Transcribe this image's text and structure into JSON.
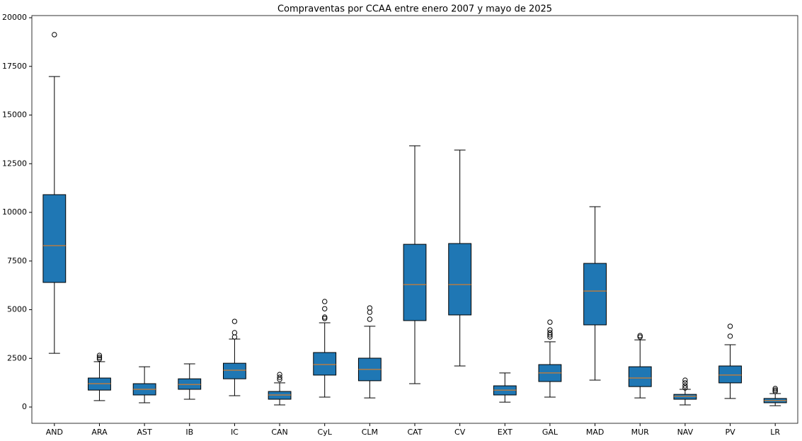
{
  "chart_data": {
    "type": "box",
    "title": "Compraventas por CCAA entre enero 2007 y mayo de 2025",
    "categories": [
      "AND",
      "ARA",
      "AST",
      "IB",
      "IC",
      "CAN",
      "CyL",
      "CLM",
      "CAT",
      "CV",
      "EXT",
      "GAL",
      "MAD",
      "MUR",
      "NAV",
      "PV",
      "LR"
    ],
    "boxes": [
      {
        "whislo": 2760,
        "q1": 6400,
        "med": 8290,
        "q3": 10910,
        "whishi": 16980,
        "fliers": [
          19130
        ]
      },
      {
        "whislo": 330,
        "q1": 870,
        "med": 1200,
        "q3": 1490,
        "whishi": 2330,
        "fliers": [
          2470,
          2550,
          2650
        ]
      },
      {
        "whislo": 220,
        "q1": 620,
        "med": 910,
        "q3": 1200,
        "whishi": 2070,
        "fliers": []
      },
      {
        "whislo": 400,
        "q1": 910,
        "med": 1160,
        "q3": 1450,
        "whishi": 2220,
        "fliers": []
      },
      {
        "whislo": 580,
        "q1": 1450,
        "med": 1890,
        "q3": 2250,
        "whishi": 3490,
        "fliers": [
          3600,
          3820,
          4400
        ]
      },
      {
        "whislo": 110,
        "q1": 400,
        "med": 620,
        "q3": 800,
        "whishi": 1240,
        "fliers": [
          1420,
          1530,
          1670
        ]
      },
      {
        "whislo": 510,
        "q1": 1640,
        "med": 2180,
        "q3": 2800,
        "whishi": 4330,
        "fliers": [
          4550,
          4620,
          5050,
          5420
        ]
      },
      {
        "whislo": 470,
        "q1": 1350,
        "med": 1930,
        "q3": 2510,
        "whishi": 4150,
        "fliers": [
          4510,
          4870,
          5090
        ]
      },
      {
        "whislo": 1200,
        "q1": 4440,
        "med": 6290,
        "q3": 8360,
        "whishi": 13420,
        "fliers": []
      },
      {
        "whislo": 2110,
        "q1": 4730,
        "med": 6290,
        "q3": 8400,
        "whishi": 13200,
        "fliers": []
      },
      {
        "whislo": 250,
        "q1": 620,
        "med": 870,
        "q3": 1090,
        "whishi": 1750,
        "fliers": []
      },
      {
        "whislo": 510,
        "q1": 1310,
        "med": 1750,
        "q3": 2180,
        "whishi": 3350,
        "fliers": [
          3600,
          3710,
          3820,
          3960,
          4360
        ]
      },
      {
        "whislo": 1380,
        "q1": 4220,
        "med": 5960,
        "q3": 7380,
        "whishi": 10290,
        "fliers": []
      },
      {
        "whislo": 470,
        "q1": 1050,
        "med": 1490,
        "q3": 2070,
        "whishi": 3450,
        "fliers": [
          3600,
          3670
        ]
      },
      {
        "whislo": 110,
        "q1": 400,
        "med": 550,
        "q3": 650,
        "whishi": 910,
        "fliers": [
          980,
          1090,
          1240,
          1380
        ]
      },
      {
        "whislo": 440,
        "q1": 1240,
        "med": 1640,
        "q3": 2110,
        "whishi": 3200,
        "fliers": [
          3640,
          4150
        ]
      },
      {
        "whislo": 70,
        "q1": 220,
        "med": 330,
        "q3": 440,
        "whishi": 690,
        "fliers": [
          800,
          870,
          950
        ]
      }
    ],
    "box_color": "#1f77b4",
    "median_color": "#ff7f0e",
    "ylim": [
      -836,
      20110
    ],
    "yticks": [
      0,
      2500,
      5000,
      7500,
      10000,
      12500,
      15000,
      17500,
      20000
    ],
    "grid": false
  }
}
